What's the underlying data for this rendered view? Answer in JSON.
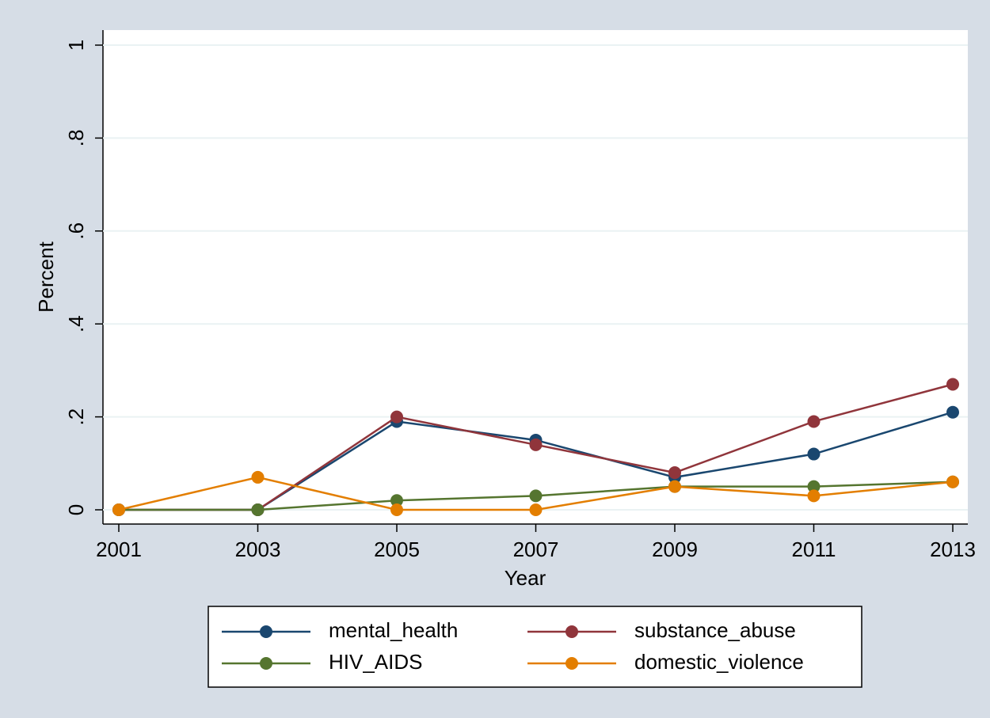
{
  "chart_data": {
    "type": "line",
    "x_label": "Year",
    "y_label": "Percent",
    "x": [
      2001,
      2003,
      2005,
      2007,
      2009,
      2011,
      2013
    ],
    "xlim": [
      2001,
      2013
    ],
    "xticks": [
      2001,
      2003,
      2005,
      2007,
      2009,
      2011,
      2013
    ],
    "ylim": [
      0,
      1
    ],
    "yticks": [
      0,
      {
        "value": 0.2,
        "label": ".2"
      },
      {
        "value": 0.4,
        "label": ".4"
      },
      {
        "value": 0.6,
        "label": ".6"
      },
      {
        "value": 0.8,
        "label": ".8"
      },
      1
    ],
    "grid": true,
    "legend": "bottom",
    "series": [
      {
        "name": "mental_health",
        "color": "#1a476f",
        "values": [
          0,
          0,
          0.19,
          0.15,
          0.07,
          0.12,
          0.21
        ]
      },
      {
        "name": "substance_abuse",
        "color": "#90353b",
        "values": [
          0,
          0,
          0.2,
          0.14,
          0.08,
          0.19,
          0.27
        ]
      },
      {
        "name": "HIV_AIDS",
        "color": "#55752f",
        "values": [
          0,
          0,
          0.02,
          0.03,
          0.05,
          0.05,
          0.06
        ]
      },
      {
        "name": "domestic_violence",
        "color": "#e37e00",
        "values": [
          0,
          0.07,
          0,
          0,
          0.05,
          0.03,
          0.06
        ]
      }
    ]
  }
}
